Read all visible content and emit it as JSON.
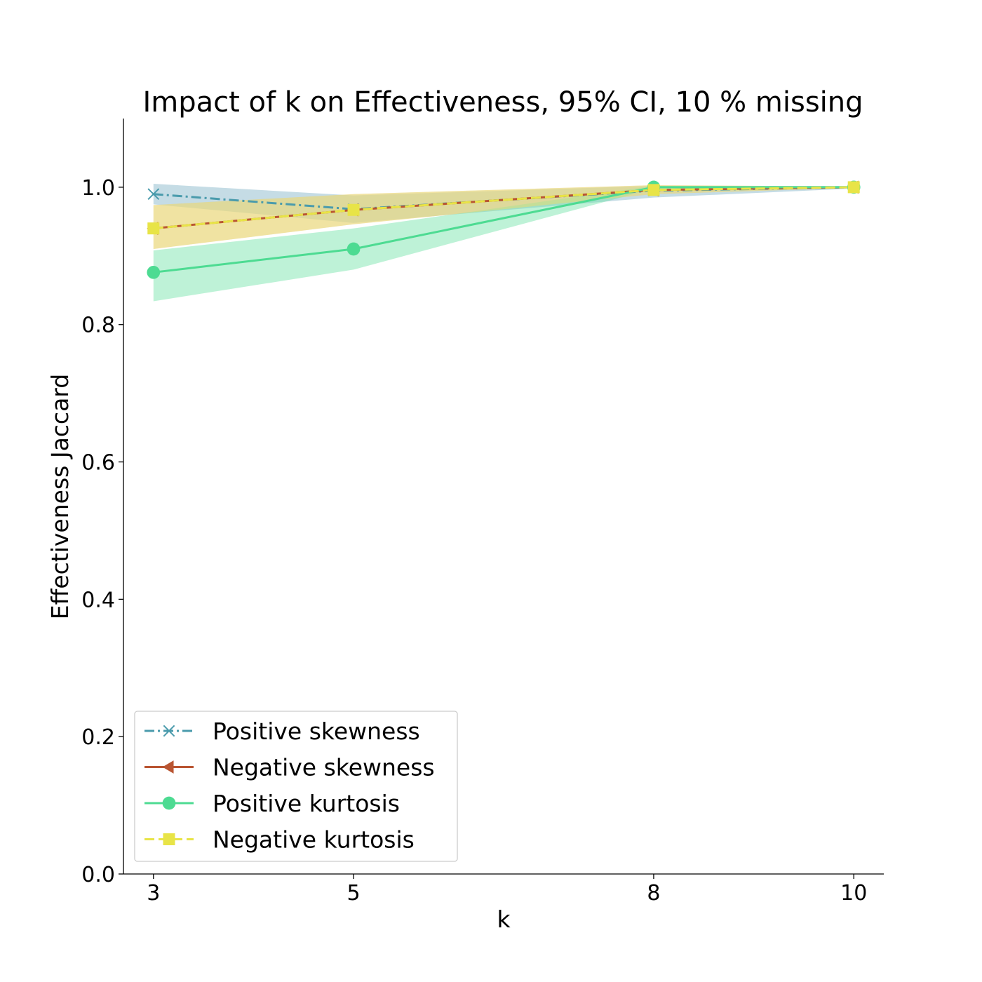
{
  "chart_data": {
    "type": "line",
    "title": "Impact of k on Effectiveness, 95% CI, 10 % missing",
    "xlabel": "k",
    "ylabel": "Effectiveness Jaccard",
    "x": [
      3,
      5,
      8,
      10
    ],
    "x_tick_labels": [
      "3",
      "5",
      "8",
      "10"
    ],
    "y_ticks": [
      0.0,
      0.2,
      0.4,
      0.6,
      0.8,
      1.0
    ],
    "y_tick_labels": [
      "0.0",
      "0.2",
      "0.4",
      "0.6",
      "0.8",
      "1.0"
    ],
    "xlim": [
      2.7,
      10.3
    ],
    "ylim": [
      0.0,
      1.1
    ],
    "legend_position": "lower-left",
    "series": [
      {
        "name": "Positive skewness",
        "color": "#4a9bac",
        "band_color": "#7fb2c5",
        "linestyle": "dashdot",
        "marker": "x",
        "values": [
          0.99,
          0.968,
          0.995,
          1.0
        ],
        "ci_low": [
          0.975,
          0.948,
          0.985,
          0.998
        ],
        "ci_high": [
          1.005,
          0.988,
          1.002,
          1.002
        ]
      },
      {
        "name": "Negative skewness",
        "color": "#b95532",
        "band_color": "#e3bd7c",
        "linestyle": "solid",
        "marker": "triangle-left",
        "values": [
          0.94,
          0.967,
          0.996,
          1.0
        ],
        "ci_low": [
          0.91,
          0.946,
          0.99,
          0.999
        ],
        "ci_high": [
          0.974,
          0.99,
          1.003,
          1.001
        ]
      },
      {
        "name": "Positive kurtosis",
        "color": "#4ddb92",
        "band_color": "#6fe3a6",
        "linestyle": "solid",
        "marker": "circle",
        "values": [
          0.876,
          0.91,
          1.0,
          1.0
        ],
        "ci_low": [
          0.834,
          0.88,
          0.998,
          0.999
        ],
        "ci_high": [
          0.908,
          0.94,
          1.002,
          1.001
        ]
      },
      {
        "name": "Negative kurtosis",
        "color": "#e8e447",
        "band_color": "#ede77a",
        "linestyle": "dashed",
        "marker": "square",
        "values": [
          0.94,
          0.967,
          0.996,
          1.0
        ],
        "ci_low": [
          0.91,
          0.946,
          0.99,
          0.999
        ],
        "ci_high": [
          0.974,
          0.99,
          1.003,
          1.001
        ]
      }
    ]
  }
}
